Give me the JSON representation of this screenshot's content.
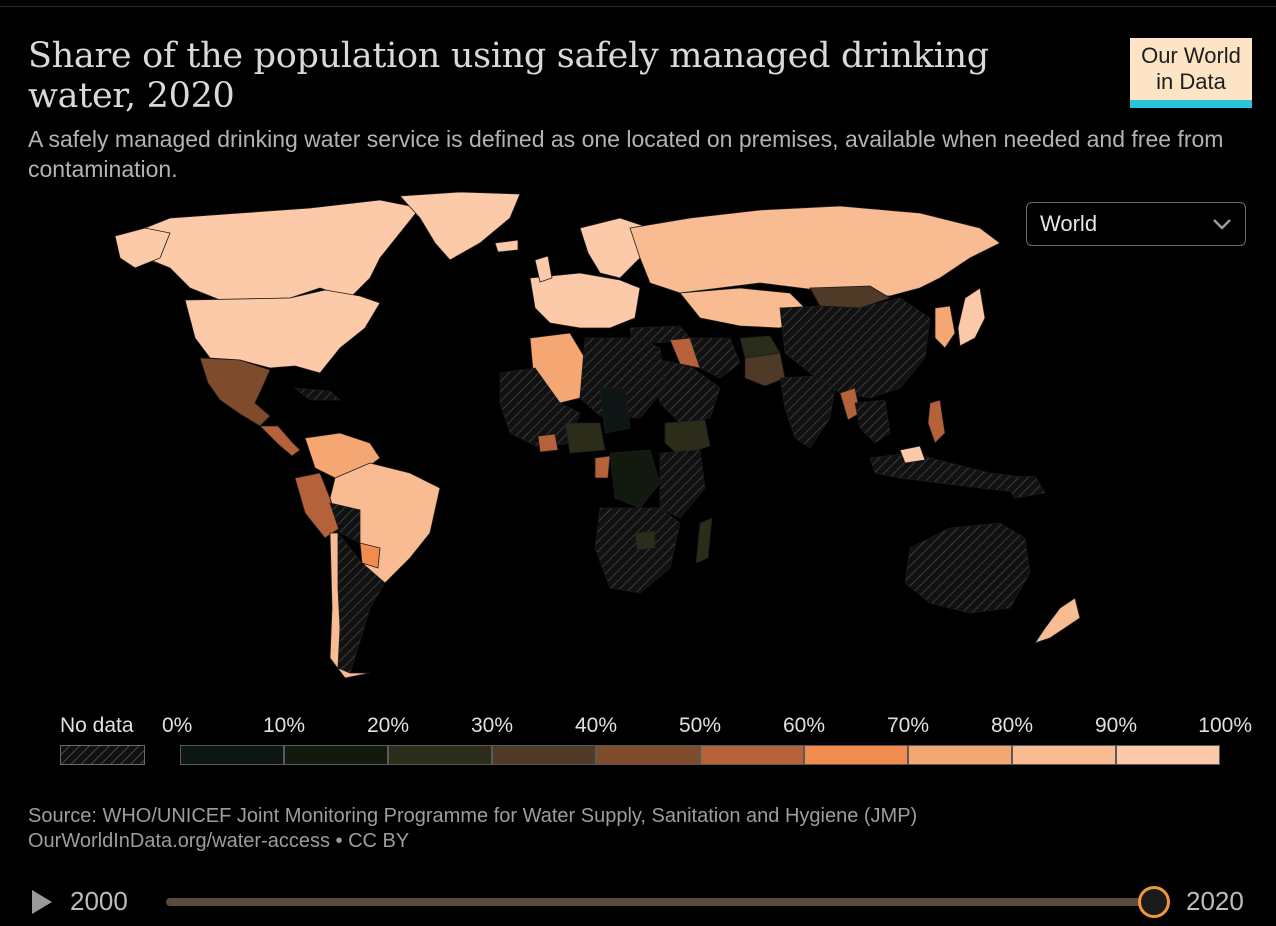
{
  "header": {
    "title": "Share of the population using safely managed drinking water, 2020",
    "subtitle": "A safely managed drinking water service is defined as one located on premises, available when needed and free from contamination."
  },
  "logo": {
    "line1": "Our World",
    "line2": "in Data",
    "bg_color": "#fce4c4",
    "bar_color": "#2ac3d8"
  },
  "region_selector": {
    "value": "World",
    "icon": "chevron-down-icon"
  },
  "legend": {
    "no_data_label": "No data",
    "tick_labels": [
      "0%",
      "10%",
      "20%",
      "30%",
      "40%",
      "50%",
      "60%",
      "70%",
      "80%",
      "90%",
      "100%"
    ],
    "colors": [
      "#0d1614",
      "#121a10",
      "#2b2c1a",
      "#4e3a26",
      "#7e4c2d",
      "#b5623a",
      "#ef8c4e",
      "#f4a673",
      "#f9bb92",
      "#fccaa9"
    ]
  },
  "map": {
    "year": "2020",
    "color_scale": "0-100% in 10% bins",
    "no_data_pattern": "diagonal-hatch"
  },
  "source": {
    "line1": "Source: WHO/UNICEF Joint Monitoring Programme for Water Supply, Sanitation and Hygiene (JMP)",
    "line2": "OurWorldInData.org/water-access • CC BY"
  },
  "timeline": {
    "start_year": "2000",
    "end_year": "2020",
    "selected_year": 2020,
    "play_icon": "play-icon",
    "accent_color": "#f0973c"
  }
}
